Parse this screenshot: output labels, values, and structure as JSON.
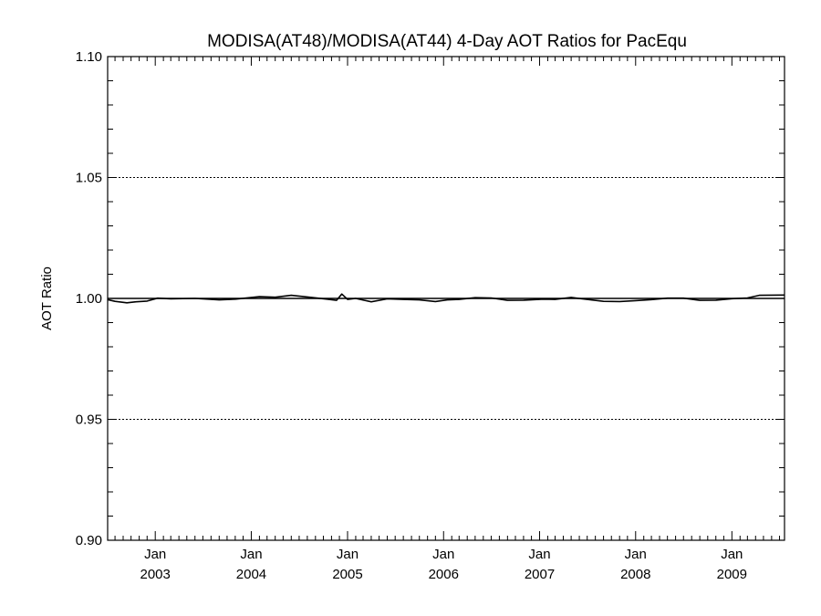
{
  "chart_data": {
    "type": "line",
    "title": "MODISA(AT48)/MODISA(AT44) 4-Day AOT Ratios for PacEqu",
    "xlabel": "",
    "ylabel": "AOT Ratio",
    "ylim": [
      0.9,
      1.1
    ],
    "xlim": [
      "2002-07-04",
      "2009-07-20"
    ],
    "y_ticks": [
      "0.90",
      "0.95",
      "1.00",
      "1.05",
      "1.10"
    ],
    "y_gridlines": [
      0.95,
      1.0,
      1.05,
      1.1
    ],
    "x_ticks": [
      {
        "date": "2003-01-01",
        "month": "Jan",
        "year": "2003"
      },
      {
        "date": "2004-01-01",
        "month": "Jan",
        "year": "2004"
      },
      {
        "date": "2005-01-01",
        "month": "Jan",
        "year": "2005"
      },
      {
        "date": "2006-01-01",
        "month": "Jan",
        "year": "2006"
      },
      {
        "date": "2007-01-01",
        "month": "Jan",
        "year": "2007"
      },
      {
        "date": "2008-01-01",
        "month": "Jan",
        "year": "2008"
      },
      {
        "date": "2009-01-01",
        "month": "Jan",
        "year": "2009"
      }
    ],
    "reference_line": 1.0,
    "grid": "dotted horizontal",
    "series": [
      {
        "color": "#000000",
        "x": [
          "2002-07-04",
          "2002-08-01",
          "2002-09-15",
          "2002-10-20",
          "2002-12-01",
          "2003-01-10",
          "2003-03-01",
          "2003-06-01",
          "2003-09-01",
          "2003-11-01",
          "2004-02-01",
          "2004-04-01",
          "2004-06-01",
          "2004-08-01",
          "2004-10-15",
          "2004-11-20",
          "2004-12-10",
          "2005-01-01",
          "2005-02-01",
          "2005-04-01",
          "2005-06-01",
          "2005-08-01",
          "2005-10-01",
          "2005-12-01",
          "2006-01-15",
          "2006-03-01",
          "2006-05-01",
          "2006-07-01",
          "2006-09-01",
          "2006-11-01",
          "2007-01-15",
          "2007-03-01",
          "2007-05-01",
          "2007-07-01",
          "2007-09-01",
          "2007-11-01",
          "2008-01-01",
          "2008-03-01",
          "2008-05-01",
          "2008-07-01",
          "2008-09-01",
          "2008-11-01",
          "2009-01-01",
          "2009-03-01",
          "2009-04-15",
          "2009-07-20"
        ],
        "y": [
          0.9995,
          0.9988,
          0.9982,
          0.9986,
          0.9989,
          1.0001,
          0.9998,
          1.0,
          0.9994,
          0.9997,
          1.0007,
          1.0005,
          1.0013,
          1.0006,
          0.9997,
          0.9992,
          1.0018,
          0.9996,
          1.0,
          0.9986,
          0.9998,
          0.9996,
          0.9994,
          0.9987,
          0.9994,
          0.9996,
          1.0003,
          1.0002,
          0.9992,
          0.9993,
          0.9997,
          0.9996,
          1.0004,
          0.9996,
          0.9988,
          0.9987,
          0.9991,
          0.9995,
          1.0001,
          1.0001,
          0.9992,
          0.9993,
          0.9999,
          1.0002,
          1.0013,
          1.0014
        ]
      }
    ]
  }
}
